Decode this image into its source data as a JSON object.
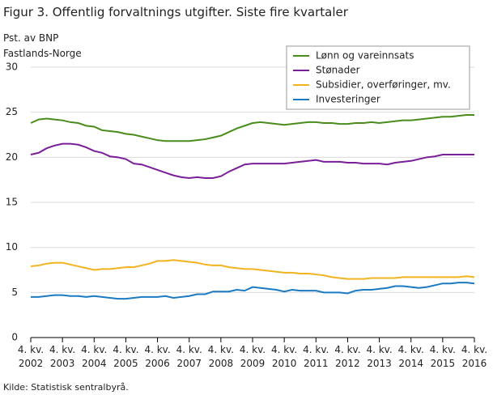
{
  "chart_data": {
    "type": "line",
    "title": "Figur 3. Offentlig forvaltnings utgifter. Siste fire kvartaler",
    "ylabel": [
      "Pst. av BNP",
      "Fastlands-Norge"
    ],
    "source": "Kilde: Statistisk sentralbyrå.",
    "categories": [
      "4. kv. 2002",
      null,
      null,
      null,
      "4. kv. 2003",
      null,
      null,
      null,
      "4. kv. 2004",
      null,
      null,
      null,
      "4. kv. 2005",
      null,
      null,
      null,
      "4. kv. 2006",
      null,
      null,
      null,
      "4. kv. 2007",
      null,
      null,
      null,
      "4. kv. 2008",
      null,
      null,
      null,
      "4. kv. 2009",
      null,
      null,
      null,
      "4. kv. 2010",
      null,
      null,
      null,
      "4. kv. 2011",
      null,
      null,
      null,
      "4. kv. 2012",
      null,
      null,
      null,
      "4. kv. 2013",
      null,
      null,
      null,
      "4. kv. 2014",
      null,
      null,
      null,
      "4. kv. 2015",
      null,
      null,
      null,
      "4. kv. 2016"
    ],
    "series": [
      {
        "name": "Lønn og vareinnsats",
        "color": "#4a8c1c",
        "values": [
          23.8,
          24.2,
          24.3,
          24.2,
          24.1,
          23.9,
          23.8,
          23.5,
          23.4,
          23.0,
          22.9,
          22.8,
          22.6,
          22.5,
          22.3,
          22.1,
          21.9,
          21.8,
          21.8,
          21.8,
          21.8,
          21.9,
          22.0,
          22.2,
          22.4,
          22.8,
          23.2,
          23.5,
          23.8,
          23.9,
          23.8,
          23.7,
          23.6,
          23.7,
          23.8,
          23.9,
          23.9,
          23.8,
          23.8,
          23.7,
          23.7,
          23.8,
          23.8,
          23.9,
          23.8,
          23.9,
          24.0,
          24.1,
          24.1,
          24.2,
          24.3,
          24.4,
          24.5,
          24.5,
          24.6,
          24.7,
          24.7
        ]
      },
      {
        "name": "Stønader",
        "color": "#7a1e99",
        "values": [
          20.3,
          20.5,
          21.0,
          21.3,
          21.5,
          21.5,
          21.4,
          21.1,
          20.7,
          20.5,
          20.1,
          20.0,
          19.8,
          19.3,
          19.2,
          18.9,
          18.6,
          18.3,
          18.0,
          17.8,
          17.7,
          17.8,
          17.7,
          17.7,
          17.9,
          18.4,
          18.8,
          19.2,
          19.3,
          19.3,
          19.3,
          19.3,
          19.3,
          19.4,
          19.5,
          19.6,
          19.7,
          19.5,
          19.5,
          19.5,
          19.4,
          19.4,
          19.3,
          19.3,
          19.3,
          19.2,
          19.4,
          19.5,
          19.6,
          19.8,
          20.0,
          20.1,
          20.3,
          20.3,
          20.3,
          20.3,
          20.3
        ]
      },
      {
        "name": "Subsidier, overføringer, mv.",
        "color": "#f2b31e",
        "values": [
          7.9,
          8.0,
          8.2,
          8.3,
          8.3,
          8.1,
          7.9,
          7.7,
          7.5,
          7.6,
          7.6,
          7.7,
          7.8,
          7.8,
          8.0,
          8.2,
          8.5,
          8.5,
          8.6,
          8.5,
          8.4,
          8.3,
          8.1,
          8.0,
          8.0,
          7.8,
          7.7,
          7.6,
          7.6,
          7.5,
          7.4,
          7.3,
          7.2,
          7.2,
          7.1,
          7.1,
          7.0,
          6.9,
          6.7,
          6.6,
          6.5,
          6.5,
          6.5,
          6.6,
          6.6,
          6.6,
          6.6,
          6.7,
          6.7,
          6.7,
          6.7,
          6.7,
          6.7,
          6.7,
          6.7,
          6.8,
          6.7
        ]
      },
      {
        "name": "Investeringer",
        "color": "#1b7ac2",
        "values": [
          4.5,
          4.5,
          4.6,
          4.7,
          4.7,
          4.6,
          4.6,
          4.5,
          4.6,
          4.5,
          4.4,
          4.3,
          4.3,
          4.4,
          4.5,
          4.5,
          4.5,
          4.6,
          4.4,
          4.5,
          4.6,
          4.8,
          4.8,
          5.1,
          5.1,
          5.1,
          5.3,
          5.2,
          5.6,
          5.5,
          5.4,
          5.3,
          5.1,
          5.3,
          5.2,
          5.2,
          5.2,
          5.0,
          5.0,
          5.0,
          4.9,
          5.2,
          5.3,
          5.3,
          5.4,
          5.5,
          5.7,
          5.7,
          5.6,
          5.5,
          5.6,
          5.8,
          6.0,
          6.0,
          6.1,
          6.1,
          6.0
        ]
      }
    ],
    "ylim": [
      0,
      30
    ],
    "yticks": [
      0,
      5,
      10,
      15,
      20,
      25,
      30
    ],
    "grid": true,
    "legend": "top-right"
  }
}
